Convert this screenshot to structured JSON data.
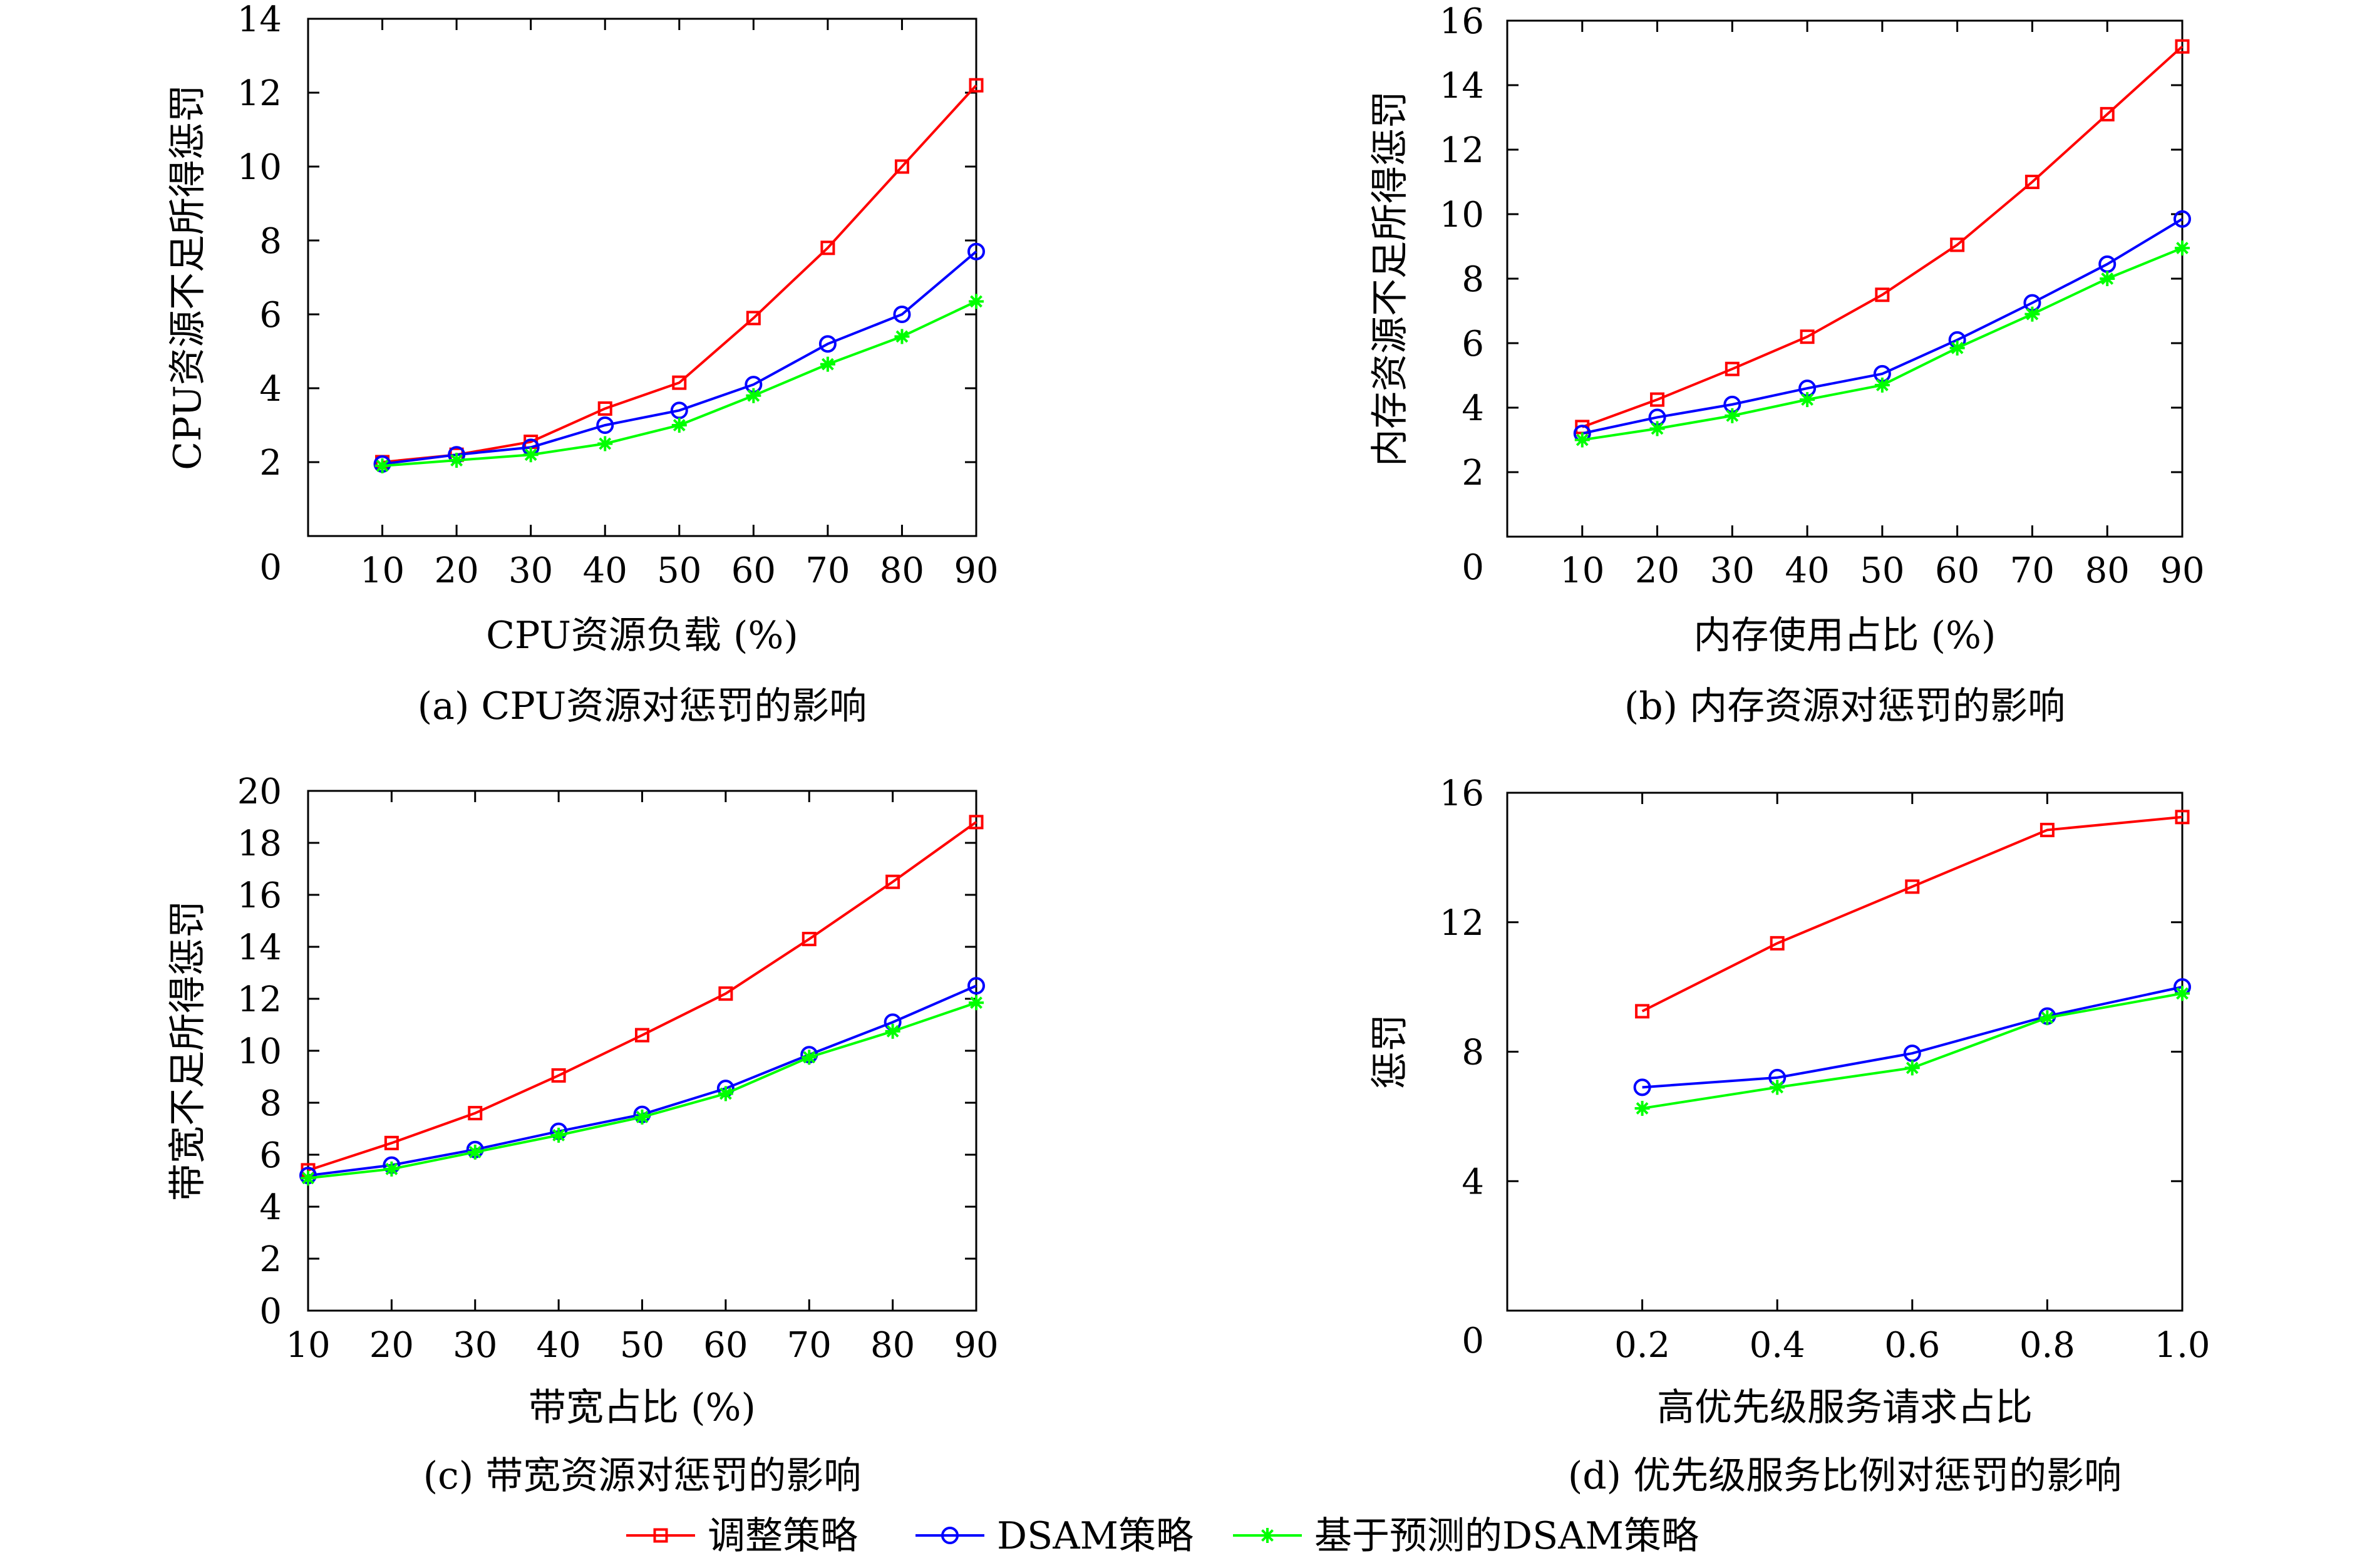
{
  "colors": {
    "red": "#ff0000",
    "blue": "#0000ff",
    "green": "#00ff00",
    "axis": "#000000"
  },
  "legend": {
    "items": [
      {
        "label": "调整策略",
        "color": "#ff0000",
        "marker": "square"
      },
      {
        "label": "DSAM策略",
        "color": "#0000ff",
        "marker": "circle"
      },
      {
        "label": "基于预测的DSAM策略",
        "color": "#00ff00",
        "marker": "asterisk"
      }
    ]
  },
  "chart_data": [
    {
      "id": "a",
      "type": "line",
      "caption": "(a) CPU资源对惩罚的影响",
      "xlabel": "CPU资源负载 (%)",
      "ylabel": "CPU资源不足所得惩罚",
      "x": [
        10,
        20,
        30,
        40,
        50,
        60,
        70,
        80,
        90
      ],
      "xlim": [
        0,
        90
      ],
      "ylim": [
        0,
        14
      ],
      "yticks": [
        0,
        2,
        4,
        6,
        8,
        10,
        12,
        14
      ],
      "series": [
        {
          "name": "调整策略",
          "color": "#ff0000",
          "marker": "square",
          "values": [
            2.0,
            2.2,
            2.55,
            3.45,
            4.15,
            5.9,
            7.8,
            10.0,
            12.2
          ]
        },
        {
          "name": "DSAM策略",
          "color": "#0000ff",
          "marker": "circle",
          "values": [
            1.95,
            2.2,
            2.4,
            3.0,
            3.4,
            4.1,
            5.2,
            6.0,
            7.7
          ]
        },
        {
          "name": "基于预测的DSAM策略",
          "color": "#00ff00",
          "marker": "asterisk",
          "values": [
            1.9,
            2.05,
            2.2,
            2.5,
            3.0,
            3.8,
            4.65,
            5.4,
            6.35
          ]
        }
      ]
    },
    {
      "id": "b",
      "type": "line",
      "caption": "(b) 内存资源对惩罚的影响",
      "xlabel": "内存使用占比 (%)",
      "ylabel": "内存资源不足所得惩罚",
      "x": [
        10,
        20,
        30,
        40,
        50,
        60,
        70,
        80,
        90
      ],
      "xlim": [
        0,
        90
      ],
      "ylim": [
        0,
        16
      ],
      "yticks": [
        0,
        2,
        4,
        6,
        8,
        10,
        12,
        14,
        16
      ],
      "series": [
        {
          "name": "调整策略",
          "color": "#ff0000",
          "marker": "square",
          "values": [
            3.4,
            4.25,
            5.2,
            6.2,
            7.5,
            9.05,
            11.0,
            13.1,
            15.2
          ]
        },
        {
          "name": "DSAM策略",
          "color": "#0000ff",
          "marker": "circle",
          "values": [
            3.2,
            3.7,
            4.1,
            4.6,
            5.05,
            6.1,
            7.25,
            8.45,
            9.85
          ]
        },
        {
          "name": "基于预测的DSAM策略",
          "color": "#00ff00",
          "marker": "asterisk",
          "values": [
            3.0,
            3.35,
            3.75,
            4.25,
            4.7,
            5.85,
            6.9,
            8.0,
            8.95
          ]
        }
      ]
    },
    {
      "id": "c",
      "type": "line",
      "caption": "(c) 带宽资源对惩罚的影响",
      "xlabel": "带宽占比 (%)",
      "ylabel": "带宽不足所得惩罚",
      "x": [
        10,
        20,
        30,
        40,
        50,
        60,
        70,
        80,
        90
      ],
      "xlim": [
        10,
        90
      ],
      "ylim": [
        0,
        20
      ],
      "yticks": [
        0,
        2,
        4,
        6,
        8,
        10,
        12,
        14,
        16,
        18,
        20
      ],
      "series": [
        {
          "name": "调整策略",
          "color": "#ff0000",
          "marker": "square",
          "values": [
            5.4,
            6.45,
            7.6,
            9.05,
            10.6,
            12.2,
            14.3,
            16.5,
            18.8
          ]
        },
        {
          "name": "DSAM策略",
          "color": "#0000ff",
          "marker": "circle",
          "values": [
            5.2,
            5.6,
            6.2,
            6.9,
            7.55,
            8.55,
            9.85,
            11.1,
            12.5
          ]
        },
        {
          "name": "基于预测的DSAM策略",
          "color": "#00ff00",
          "marker": "asterisk",
          "values": [
            5.1,
            5.45,
            6.1,
            6.75,
            7.45,
            8.35,
            9.75,
            10.75,
            11.85
          ]
        }
      ]
    },
    {
      "id": "d",
      "type": "line",
      "caption": "(d) 优先级服务比例对惩罚的影响",
      "xlabel": "高优先级服务请求占比",
      "ylabel": "惩罚",
      "x": [
        "0.2",
        "0.4",
        "0.6",
        "0.8",
        "1.0"
      ],
      "xlim": [
        0,
        1.0
      ],
      "ylim": [
        0,
        16
      ],
      "yticks": [
        0,
        4,
        8,
        12,
        16
      ],
      "series": [
        {
          "name": "调整策略",
          "color": "#ff0000",
          "marker": "square",
          "values": [
            9.25,
            11.35,
            13.1,
            14.85,
            15.25
          ]
        },
        {
          "name": "DSAM策略",
          "color": "#0000ff",
          "marker": "circle",
          "values": [
            6.9,
            7.2,
            7.95,
            9.1,
            10.0
          ]
        },
        {
          "name": "基于预测的DSAM策略",
          "color": "#00ff00",
          "marker": "asterisk",
          "values": [
            6.25,
            6.9,
            7.5,
            9.05,
            9.8
          ]
        }
      ]
    }
  ]
}
